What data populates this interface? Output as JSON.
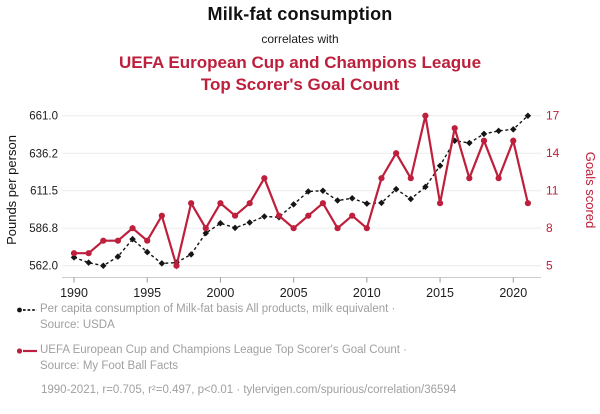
{
  "titles": {
    "main": "Milk-fat consumption",
    "connector": "correlates with",
    "secondary_line1": "UEFA European Cup and Champions League",
    "secondary_line2": "Top Scorer's Goal Count"
  },
  "colors": {
    "accent_red": "#bd1f3c",
    "series_black": "#151515",
    "grid": "#ececec",
    "axis_line": "#cccccc",
    "tick_mark": "#999999",
    "tick_text": "#1c1c1c",
    "muted_gray": "#a0a0a0"
  },
  "chart_data": {
    "type": "line",
    "x": [
      1990,
      1991,
      1992,
      1993,
      1994,
      1995,
      1996,
      1997,
      1998,
      1999,
      2000,
      2001,
      2002,
      2003,
      2004,
      2005,
      2006,
      2007,
      2008,
      2009,
      2010,
      2011,
      2012,
      2013,
      2014,
      2015,
      2016,
      2017,
      2018,
      2019,
      2020,
      2021
    ],
    "series": [
      {
        "name": "Per capita consumption of Milk-fat basis All products, milk equivalent",
        "axis": "left",
        "style": "dashed-diamond",
        "color": "#151515",
        "values": [
          567.5,
          564,
          562,
          568,
          579.5,
          571,
          563.5,
          564,
          569.5,
          583.5,
          590,
          587,
          590.5,
          594.5,
          594,
          602.5,
          611,
          611.5,
          605,
          606.5,
          603,
          603.5,
          612.5,
          606,
          614,
          628,
          644.5,
          643,
          649,
          651,
          652,
          661
        ]
      },
      {
        "name": "UEFA European Cup and Champions League Top Scorer's Goal Count",
        "axis": "right",
        "style": "solid-circle",
        "color": "#bd1f3c",
        "values": [
          6,
          6,
          7,
          7,
          8,
          7,
          9,
          5,
          10,
          8,
          10,
          9,
          10,
          12,
          9,
          8,
          9,
          10,
          8,
          9,
          8,
          12,
          14,
          12,
          17,
          10,
          16,
          12,
          15,
          12,
          15,
          10
        ]
      }
    ],
    "left_axis": {
      "label": "Pounds per person",
      "ticks": [
        562.0,
        586.8,
        611.5,
        636.2,
        661.0
      ],
      "tick_labels": [
        "562.0",
        "586.8",
        "611.5",
        "636.2",
        "661.0"
      ],
      "range": [
        562,
        661
      ]
    },
    "right_axis": {
      "label": "Goals scored",
      "ticks": [
        5,
        8,
        11,
        14,
        17
      ],
      "tick_labels": [
        "5",
        "8",
        "11",
        "14",
        "17"
      ],
      "range": [
        5,
        17
      ]
    },
    "x_axis": {
      "ticks": [
        1990,
        1995,
        2000,
        2005,
        2010,
        2015,
        2020
      ],
      "range": [
        1990,
        2021
      ]
    },
    "grid": "horizontal",
    "legend_position": "bottom"
  },
  "legend": [
    {
      "series": "milk-fat",
      "line1": "Per capita consumption of Milk-fat basis All products, milk equivalent ·",
      "line2": "Source: USDA"
    },
    {
      "series": "uefa-goals",
      "line1": "UEFA European Cup and Champions League Top Scorer's Goal Count ·",
      "line2": "Source: My Foot Ball Facts"
    }
  ],
  "footer": "1990-2021, r=0.705, r²=0.497, p<0.01 · tylervigen.com/spurious/correlation/36594"
}
